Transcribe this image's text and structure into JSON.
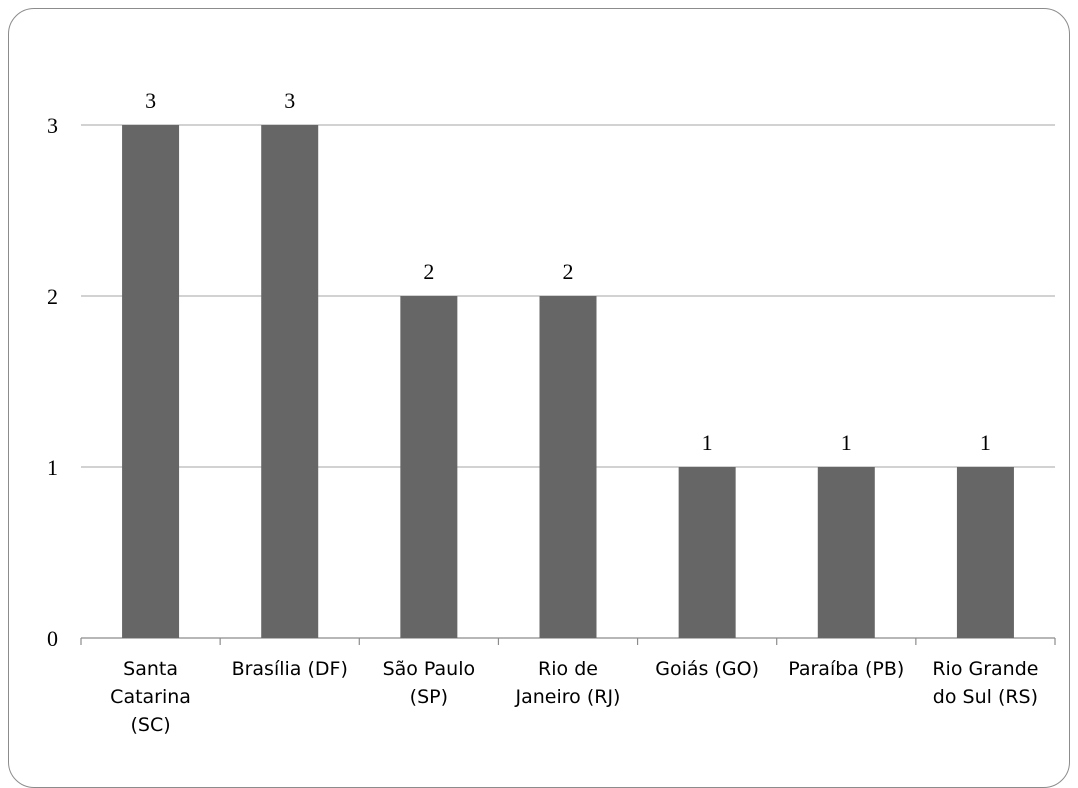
{
  "chart_data": {
    "type": "bar",
    "categories": [
      [
        "Santa",
        "Catarina",
        "(SC)"
      ],
      [
        "Brasília (DF)"
      ],
      [
        "São Paulo",
        "(SP)"
      ],
      [
        "Rio de",
        "Janeiro (RJ)"
      ],
      [
        "Goiás (GO)"
      ],
      [
        "Paraíba (PB)"
      ],
      [
        "Rio Grande",
        "do Sul (RS)"
      ]
    ],
    "values": [
      3,
      3,
      2,
      2,
      1,
      1,
      1
    ],
    "data_labels": [
      "3",
      "3",
      "2",
      "2",
      "1",
      "1",
      "1"
    ],
    "y_ticks": [
      "0",
      "1",
      "2",
      "3"
    ],
    "ylim": [
      0,
      3
    ],
    "title": "",
    "xlabel": "",
    "ylabel": "",
    "grid": true,
    "legend": "none",
    "colors": {
      "bar": "#666666",
      "grid": "#a6a6a6",
      "axis": "#8c8c8c"
    }
  }
}
